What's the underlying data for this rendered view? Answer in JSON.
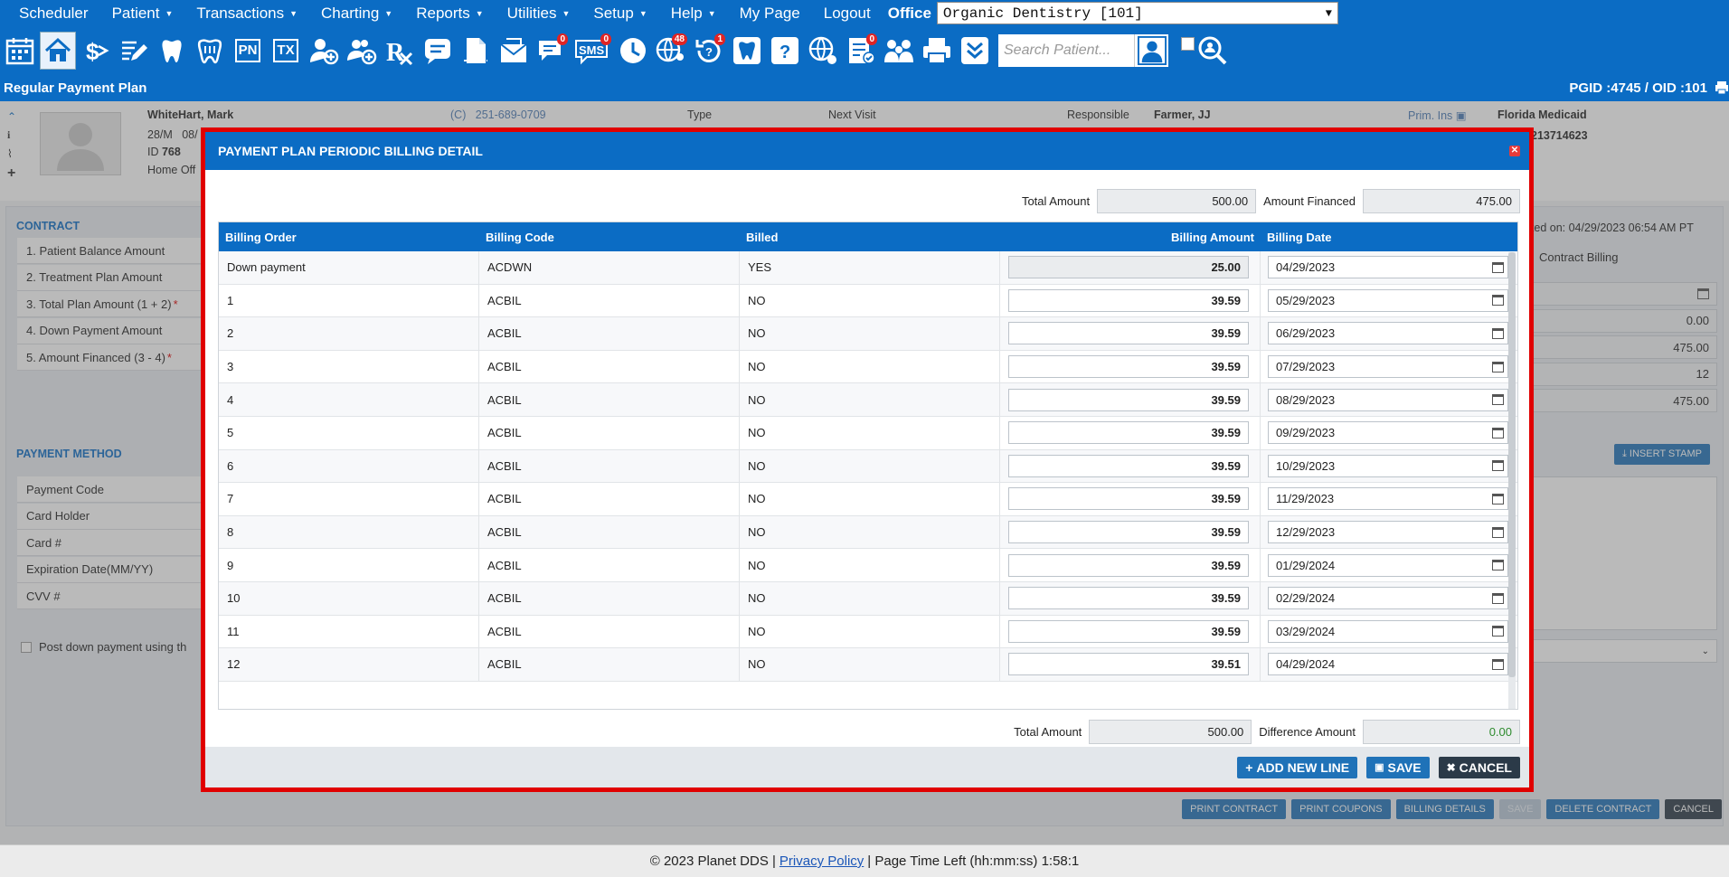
{
  "topnav": {
    "items": [
      {
        "label": "Scheduler",
        "caret": false
      },
      {
        "label": "Patient",
        "caret": true
      },
      {
        "label": "Transactions",
        "caret": true
      },
      {
        "label": "Charting",
        "caret": true
      },
      {
        "label": "Reports",
        "caret": true
      },
      {
        "label": "Utilities",
        "caret": true
      },
      {
        "label": "Setup",
        "caret": true
      },
      {
        "label": "Help",
        "caret": true
      },
      {
        "label": "My Page",
        "caret": false
      },
      {
        "label": "Logout",
        "caret": false
      }
    ],
    "office_label": "Office",
    "office_value": "Organic Dentistry [101]"
  },
  "toolbar": {
    "search_placeholder": "Search Patient...",
    "badges": {
      "chat": "0",
      "sms": "0",
      "globe": "48",
      "recall": "1",
      "notes": "0"
    },
    "pn_label": "PN",
    "tx_label": "TX",
    "sms_label": "SMS"
  },
  "subheader": {
    "title": "Regular Payment Plan",
    "ids": "PGID :4745  /  OID :101"
  },
  "patient": {
    "name": "WhiteHart, Mark",
    "age_sex": "28/M",
    "dob_partial": "08/",
    "id_label": "ID",
    "id_value": "768",
    "home_office": "Home Off",
    "phone_prefix": "(C)",
    "phone": "251-689-0709",
    "type_label": "Type",
    "next_visit_label": "Next Visit",
    "responsible_label": "Responsible",
    "responsible_value": "Farmer, JJ",
    "prim_ins_label": "Prim. Ins",
    "insurance": "Florida Medicaid",
    "insurance_id": "213714623"
  },
  "contract": {
    "section_title": "CONTRACT",
    "rows": [
      {
        "label": "1.  Patient Balance Amount",
        "required": false
      },
      {
        "label": "2. Treatment Plan Amount",
        "required": false
      },
      {
        "label": "3. Total Plan Amount (1 + 2)",
        "required": true
      },
      {
        "label": "4. Down Payment Amount",
        "required": false
      },
      {
        "label": "5. Amount Financed (3 - 4)",
        "required": true
      }
    ],
    "created_on": "eated on: 04/29/2023 06:54 AM PT",
    "contract_billing": "Contract Billing",
    "right_values": [
      "",
      "0.00",
      "475.00",
      "12",
      "475.00"
    ],
    "insert_stamp": "INSERT STAMP"
  },
  "payment_method": {
    "section_title": "PAYMENT METHOD",
    "rows": [
      "Payment Code",
      "Card Holder",
      "Card #",
      "Expiration Date(MM/YY)",
      "CVV #"
    ],
    "post_down_payment": "Post down payment using th"
  },
  "bottom_buttons": [
    "PRINT CONTRACT",
    "PRINT COUPONS",
    "BILLING DETAILS",
    "SAVE",
    "DELETE CONTRACT",
    "CANCEL"
  ],
  "footer": {
    "copyright": "© 2023 Planet DDS |",
    "privacy": "Privacy Policy",
    "time_left": "|  Page Time Left (hh:mm:ss) 1:58:1"
  },
  "modal": {
    "title": "PAYMENT PLAN PERIODIC BILLING DETAIL",
    "total_amount_label": "Total Amount",
    "total_amount": "500.00",
    "amount_financed_label": "Amount Financed",
    "amount_financed": "475.00",
    "columns": [
      "Billing Order",
      "Billing Code",
      "Billed",
      "Billing Amount",
      "Billing Date"
    ],
    "rows": [
      {
        "order": "Down payment",
        "code": "ACDWN",
        "billed": "YES",
        "amount": "25.00",
        "date": "04/29/2023"
      },
      {
        "order": "1",
        "code": "ACBIL",
        "billed": "NO",
        "amount": "39.59",
        "date": "05/29/2023"
      },
      {
        "order": "2",
        "code": "ACBIL",
        "billed": "NO",
        "amount": "39.59",
        "date": "06/29/2023"
      },
      {
        "order": "3",
        "code": "ACBIL",
        "billed": "NO",
        "amount": "39.59",
        "date": "07/29/2023"
      },
      {
        "order": "4",
        "code": "ACBIL",
        "billed": "NO",
        "amount": "39.59",
        "date": "08/29/2023"
      },
      {
        "order": "5",
        "code": "ACBIL",
        "billed": "NO",
        "amount": "39.59",
        "date": "09/29/2023"
      },
      {
        "order": "6",
        "code": "ACBIL",
        "billed": "NO",
        "amount": "39.59",
        "date": "10/29/2023"
      },
      {
        "order": "7",
        "code": "ACBIL",
        "billed": "NO",
        "amount": "39.59",
        "date": "11/29/2023"
      },
      {
        "order": "8",
        "code": "ACBIL",
        "billed": "NO",
        "amount": "39.59",
        "date": "12/29/2023"
      },
      {
        "order": "9",
        "code": "ACBIL",
        "billed": "NO",
        "amount": "39.59",
        "date": "01/29/2024"
      },
      {
        "order": "10",
        "code": "ACBIL",
        "billed": "NO",
        "amount": "39.59",
        "date": "02/29/2024"
      },
      {
        "order": "11",
        "code": "ACBIL",
        "billed": "NO",
        "amount": "39.59",
        "date": "03/29/2024"
      },
      {
        "order": "12",
        "code": "ACBIL",
        "billed": "NO",
        "amount": "39.51",
        "date": "04/29/2024"
      }
    ],
    "footer_total_label": "Total Amount",
    "footer_total": "500.00",
    "difference_label": "Difference Amount",
    "difference": "0.00",
    "add_line": "ADD NEW LINE",
    "save": "SAVE",
    "cancel": "CANCEL"
  },
  "colors": {
    "brand_blue": "#0b6cc4",
    "modal_border": "#e00000",
    "difference_green": "#2e8b2e"
  }
}
